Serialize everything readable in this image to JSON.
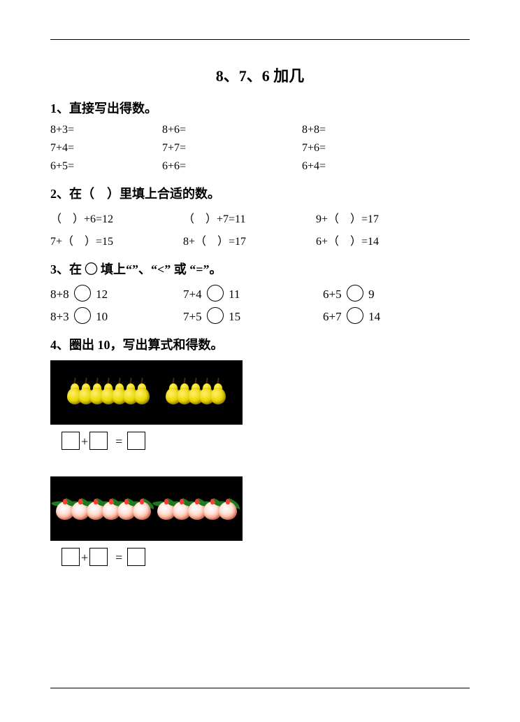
{
  "title": "8、7、6 加几",
  "q1": {
    "heading": "1、直接写出得数。",
    "rows": [
      [
        "8+3=",
        "8+6=",
        "8+8="
      ],
      [
        "7+4=",
        "7+7=",
        "7+6="
      ],
      [
        "6+5=",
        "6+6=",
        "6+4="
      ]
    ]
  },
  "q2": {
    "heading": "2、在（　）里填上合适的数。",
    "rows": [
      [
        "（　）+6=12",
        "（　）+7=11",
        "9+（　）=17"
      ],
      [
        "7+（　）=15",
        "8+（　）=17",
        "6+（　）=14"
      ]
    ]
  },
  "q3": {
    "heading": "3、在 ◯ 填上“”、“<” 或 “=”。",
    "rows": [
      {
        "a": {
          "l": "8+8",
          "r": "12"
        },
        "b": {
          "l": "7+4",
          "r": "11"
        },
        "c": {
          "l": "6+5",
          "r": "9"
        }
      },
      {
        "a": {
          "l": "8+3",
          "r": "10"
        },
        "b": {
          "l": "7+5",
          "r": "15"
        },
        "c": {
          "l": "6+7",
          "r": "14"
        }
      }
    ]
  },
  "q4": {
    "heading": "4、圈出 10，写出算式和得数。",
    "panel1": {
      "type": "pear",
      "bg": "#000000",
      "item_color": "#e9d400",
      "groups": [
        7,
        5
      ]
    },
    "panel2": {
      "type": "peach",
      "bg": "#000000",
      "item_color": "#ff3b2e",
      "leaf_color": "#1f7a1f",
      "groups": [
        6,
        5
      ]
    },
    "equation_template": "□+□ = □"
  }
}
